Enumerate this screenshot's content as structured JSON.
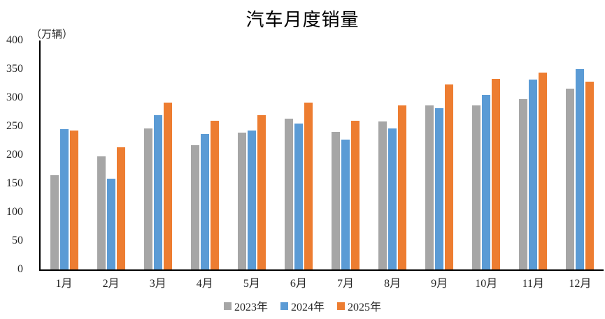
{
  "chart_data": {
    "type": "bar",
    "title": "汽车月度销量",
    "unit_label": "（万辆）",
    "categories": [
      "1月",
      "2月",
      "3月",
      "4月",
      "5月",
      "6月",
      "7月",
      "8月",
      "9月",
      "10月",
      "11月",
      "12月"
    ],
    "series": [
      {
        "name": "2023年",
        "color": "#A6A6A6",
        "values": [
          165,
          198,
          246,
          217,
          239,
          263,
          240,
          259,
          286,
          286,
          298,
          316
        ]
      },
      {
        "name": "2024年",
        "color": "#5B9BD5",
        "values": [
          245,
          159,
          270,
          237,
          243,
          255,
          227,
          246,
          282,
          305,
          332,
          350
        ]
      },
      {
        "name": "2025年",
        "color": "#ED7D31",
        "values": [
          243,
          213,
          292,
          260,
          269,
          291,
          260,
          286,
          323,
          333,
          344,
          328
        ]
      }
    ],
    "ylim": [
      0,
      400
    ],
    "yticks": [
      0,
      50,
      100,
      150,
      200,
      250,
      300,
      350,
      400
    ],
    "grid": false,
    "legend_position": "bottom",
    "axis_color": "#000000",
    "text_color": "#262626",
    "background_color": "#FFFFFF"
  }
}
